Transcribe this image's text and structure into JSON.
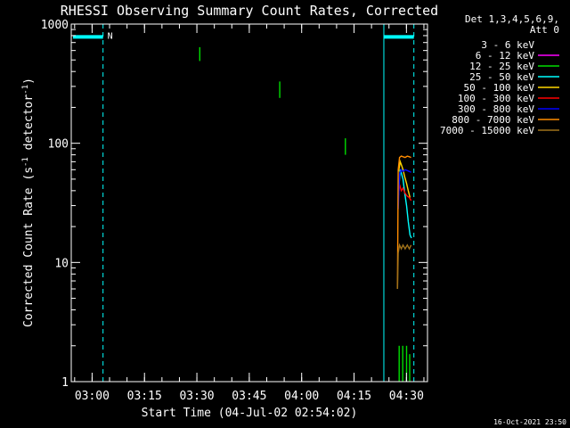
{
  "chart_data": {
    "type": "line",
    "title": "RHESSI Observing Summary Count Rates, Corrected",
    "xlabel": "Start Time (04-Jul-02 02:54:02)",
    "ylabel_main": "Corrected Count Rate (s",
    "ylabel_sup1": "-1",
    "ylabel_mid": " detector",
    "ylabel_sup2": "-1",
    "ylabel_end": ")",
    "y_scale": "log",
    "ylim": [
      1,
      1000
    ],
    "xlim_minutes": [
      0,
      102
    ],
    "y_ticks": [
      {
        "value": 1,
        "label": "1"
      },
      {
        "value": 10,
        "label": "10"
      },
      {
        "value": 100,
        "label": "100"
      },
      {
        "value": 1000,
        "label": "1000"
      }
    ],
    "x_ticks": [
      {
        "minutes": 5.97,
        "label": "03:00"
      },
      {
        "minutes": 20.97,
        "label": "03:15"
      },
      {
        "minutes": 35.97,
        "label": "03:30"
      },
      {
        "minutes": 50.97,
        "label": "03:45"
      },
      {
        "minutes": 65.97,
        "label": "04:00"
      },
      {
        "minutes": 80.97,
        "label": "04:15"
      },
      {
        "minutes": 95.97,
        "label": "04:30"
      }
    ],
    "legend": {
      "header_line1": "Det 1,3,4,5,6,9,",
      "header_line2": "Att 0",
      "placement": "right",
      "items": [
        {
          "label": "3 - 6 keV",
          "color": "#000000"
        },
        {
          "label": "6 - 12 keV",
          "color": "#ff00ff"
        },
        {
          "label": "12 - 25 keV",
          "color": "#00dd00"
        },
        {
          "label": "25 - 50 keV",
          "color": "#00ffff"
        },
        {
          "label": "50 - 100 keV",
          "color": "#ffd700"
        },
        {
          "label": "100 - 300 keV",
          "color": "#ff0000"
        },
        {
          "label": "300 - 800 keV",
          "color": "#0000ff"
        },
        {
          "label": "800 - 7000 keV",
          "color": "#ff8c00"
        },
        {
          "label": "7000 - 15000 keV",
          "color": "#a0721a"
        }
      ]
    },
    "annotations": {
      "night_label": "N",
      "night_color": "#00ffff",
      "night_bars": [
        [
          0.5,
          9.1
        ],
        [
          89.5,
          98.1
        ]
      ],
      "night_bar_value": 780,
      "night_lines_dashed": [
        9.1,
        98.1
      ],
      "night_lines_solid": [
        89.5
      ],
      "timestamp": "16-Oct-2021 23:50"
    },
    "series": [
      {
        "name": "12 - 25 keV",
        "color": "#00dd00",
        "segments": [
          [
            [
              36.8,
              490
            ],
            [
              36.8,
              640
            ]
          ],
          [
            [
              59.7,
              240
            ],
            [
              59.7,
              330
            ]
          ],
          [
            [
              78.5,
              80
            ],
            [
              78.5,
              110
            ]
          ],
          [
            [
              93.9,
              1
            ],
            [
              93.9,
              2
            ]
          ],
          [
            [
              94.9,
              1
            ],
            [
              94.9,
              2
            ]
          ],
          [
            [
              96.0,
              1
            ],
            [
              96.0,
              2
            ]
          ],
          [
            [
              96.9,
              1
            ],
            [
              96.9,
              1.7
            ]
          ]
        ]
      },
      {
        "name": "25 - 50 keV",
        "color": "#00ffff",
        "segments": [
          [
            [
              93.7,
              40
            ],
            [
              94.2,
              60
            ],
            [
              94.6,
              55
            ],
            [
              95.0,
              50
            ],
            [
              95.5,
              38
            ],
            [
              96.0,
              30
            ],
            [
              96.5,
              22
            ],
            [
              97.0,
              17
            ],
            [
              97.4,
              16
            ]
          ]
        ]
      },
      {
        "name": "50 - 100 keV",
        "color": "#ffd700",
        "segments": [
          [
            [
              93.7,
              58
            ],
            [
              94.2,
              70
            ],
            [
              94.6,
              65
            ],
            [
              95.0,
              60
            ],
            [
              95.5,
              52
            ],
            [
              96.0,
              46
            ],
            [
              96.5,
              40
            ],
            [
              97.0,
              35
            ]
          ]
        ]
      },
      {
        "name": "100 - 300 keV",
        "color": "#ff0000",
        "segments": [
          [
            [
              93.6,
              35
            ],
            [
              94.0,
              45
            ],
            [
              94.5,
              40
            ],
            [
              95.0,
              42
            ],
            [
              95.6,
              38
            ],
            [
              96.2,
              36
            ],
            [
              96.8,
              35
            ],
            [
              97.3,
              33
            ]
          ]
        ]
      },
      {
        "name": "300 - 800 keV",
        "color": "#0000ff",
        "segments": [
          [
            [
              93.6,
              28
            ],
            [
              94.0,
              55
            ],
            [
              94.5,
              60
            ],
            [
              95.0,
              58
            ],
            [
              95.6,
              60
            ],
            [
              96.2,
              59
            ],
            [
              96.8,
              58
            ],
            [
              97.3,
              57
            ]
          ]
        ]
      },
      {
        "name": "800 - 7000 keV",
        "color": "#ff8c00",
        "segments": [
          [
            [
              93.4,
              6
            ],
            [
              93.6,
              60
            ],
            [
              94.0,
              76
            ],
            [
              94.5,
              78
            ],
            [
              95.0,
              77
            ],
            [
              95.6,
              76
            ],
            [
              96.2,
              78
            ],
            [
              96.8,
              77
            ],
            [
              97.3,
              76
            ]
          ]
        ]
      },
      {
        "name": "7000 - 15000 keV",
        "color": "#a0721a",
        "segments": [
          [
            [
              93.4,
              6
            ],
            [
              93.6,
              12
            ],
            [
              94.0,
              14
            ],
            [
              94.5,
              13
            ],
            [
              95.0,
              14
            ],
            [
              95.6,
              13
            ],
            [
              96.2,
              14
            ],
            [
              96.8,
              13
            ],
            [
              97.3,
              14
            ]
          ]
        ]
      }
    ]
  }
}
